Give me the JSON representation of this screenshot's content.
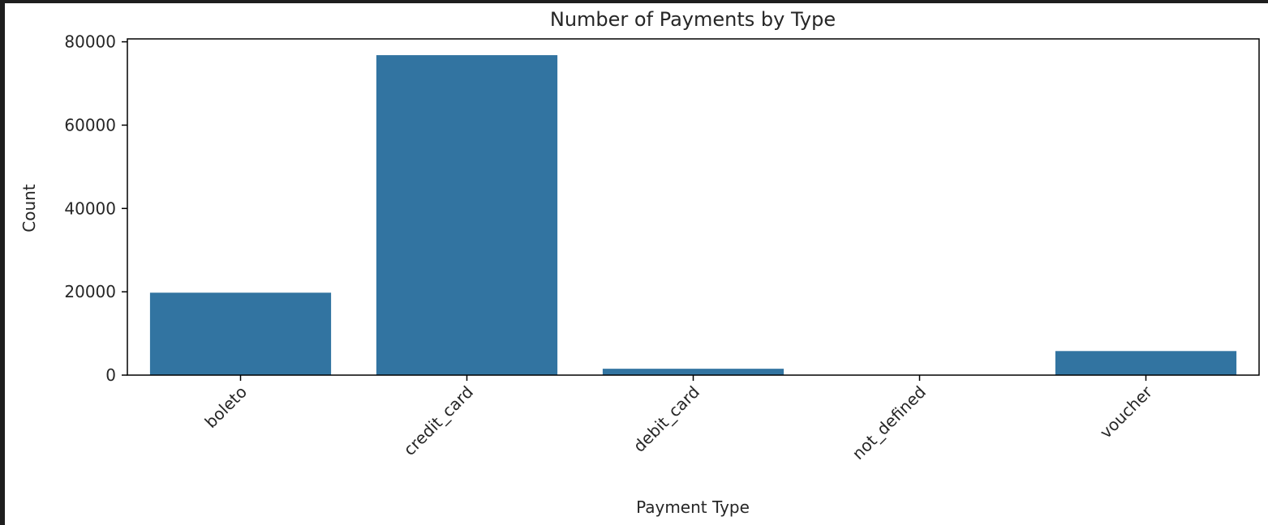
{
  "chart_data": {
    "type": "bar",
    "title": "Number of Payments by Type",
    "xlabel": "Payment Type",
    "ylabel": "Count",
    "categories": [
      "boleto",
      "credit_card",
      "debit_card",
      "not_defined",
      "voucher"
    ],
    "values": [
      19784,
      76795,
      1529,
      3,
      5775
    ],
    "ylim": [
      0,
      80700
    ],
    "yticks": [
      "0",
      "20000",
      "40000",
      "60000",
      "80000"
    ],
    "ytick_values": [
      0,
      20000,
      40000,
      60000,
      80000
    ],
    "grid": false,
    "legend": "none",
    "bar_color": "#3274a1",
    "background": "#1e1e1e",
    "plot_background": "#ffffff",
    "rotate_xticks": 45
  }
}
